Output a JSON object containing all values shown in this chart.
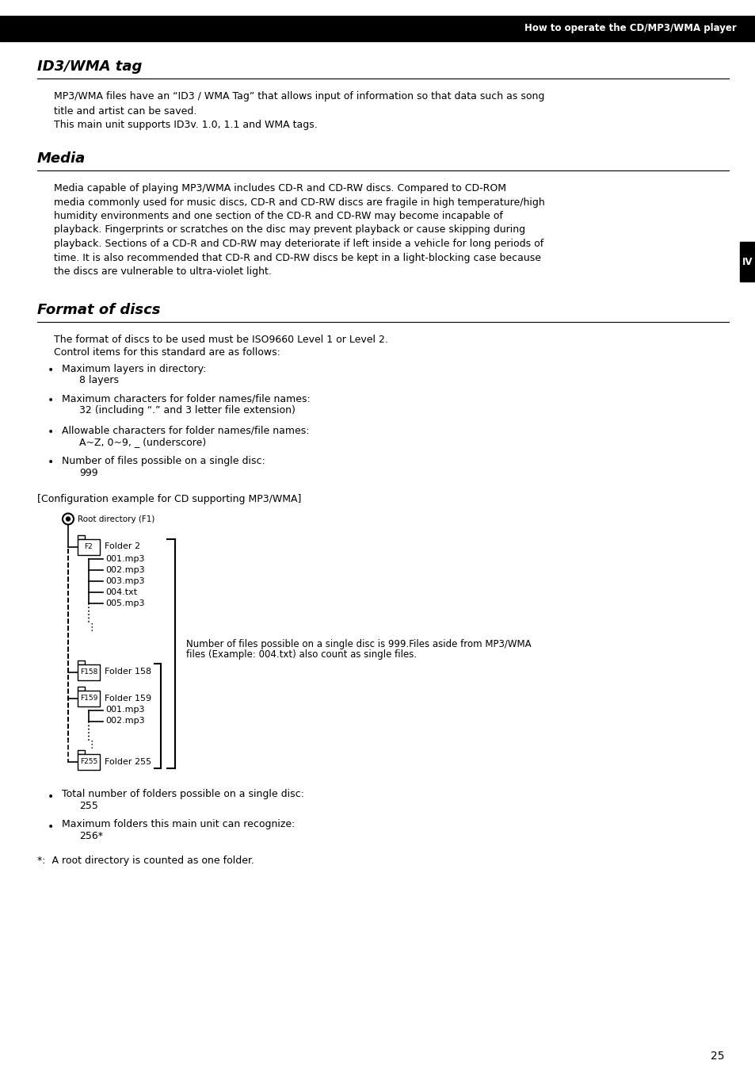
{
  "header_text": "How to operate the CD/MP3/WMA player",
  "header_bg": "#000000",
  "header_text_color": "#ffffff",
  "tab_label": "IV",
  "tab_bg": "#000000",
  "tab_text_color": "#ffffff",
  "section1_title": "ID3/WMA tag",
  "section1_body_line1": "MP3/WMA files have an “ID3 / WMA Tag” that allows input of information so that data such as song\ntitle and artist can be saved.",
  "section1_body_line2": "This main unit supports ID3v. 1.0, 1.1 and WMA tags.",
  "section2_title": "Media",
  "section2_body_lines": [
    "Media capable of playing MP3/WMA includes CD-R and CD-RW discs. Compared to CD-ROM",
    "media commonly used for music discs, CD-R and CD-RW discs are fragile in high temperature/high",
    "humidity environments and one section of the CD-R and CD-RW may become incapable of",
    "playback. Fingerprints or scratches on the disc may prevent playback or cause skipping during",
    "playback. Sections of a CD-R and CD-RW may deteriorate if left inside a vehicle for long periods of",
    "time. It is also recommended that CD-R and CD-RW discs be kept in a light-blocking case because",
    "the discs are vulnerable to ultra-violet light."
  ],
  "section3_title": "Format of discs",
  "section3_intro1": "The format of discs to be used must be ISO9660 Level 1 or Level 2.",
  "section3_intro2": "Control items for this standard are as follows:",
  "bullets": [
    {
      "label": "Maximum layers in directory:",
      "value": "8 layers"
    },
    {
      "label": "Maximum characters for folder names/file names:",
      "value": "32 (including “.” and 3 letter file extension)"
    },
    {
      "label": "Allowable characters for folder names/file names:",
      "value": "A~Z, 0~9, _ (underscore)"
    },
    {
      "label": "Number of files possible on a single disc:",
      "value": "999"
    }
  ],
  "config_label": "[Configuration example for CD supporting MP3/WMA]",
  "diagram_note_line1": "Number of files possible on a single disc is 999.Files aside from MP3/WMA",
  "diagram_note_line2": "files (Example: 004.txt) also count as single files.",
  "bullets2": [
    {
      "label": "Total number of folders possible on a single disc:",
      "value": "255"
    },
    {
      "label": "Maximum folders this main unit can recognize:",
      "value": "256*"
    }
  ],
  "footnote": "*:  A root directory is counted as one folder.",
  "page_number": "25"
}
